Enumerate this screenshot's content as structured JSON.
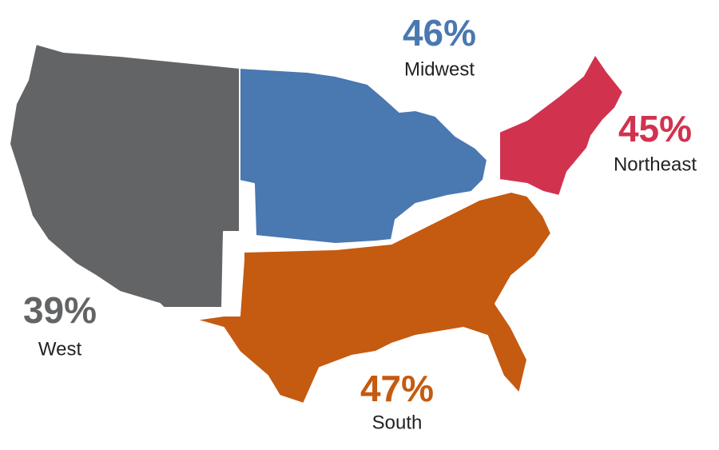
{
  "chart_data": {
    "type": "map",
    "categories": [
      "Midwest",
      "Northeast",
      "West",
      "South"
    ],
    "values": [
      46,
      45,
      39,
      47
    ],
    "value_labels": [
      "46%",
      "45%",
      "39%",
      "47%"
    ],
    "colors": [
      "#4a78b0",
      "#d1334f",
      "#636466",
      "#c55a11"
    ]
  }
}
